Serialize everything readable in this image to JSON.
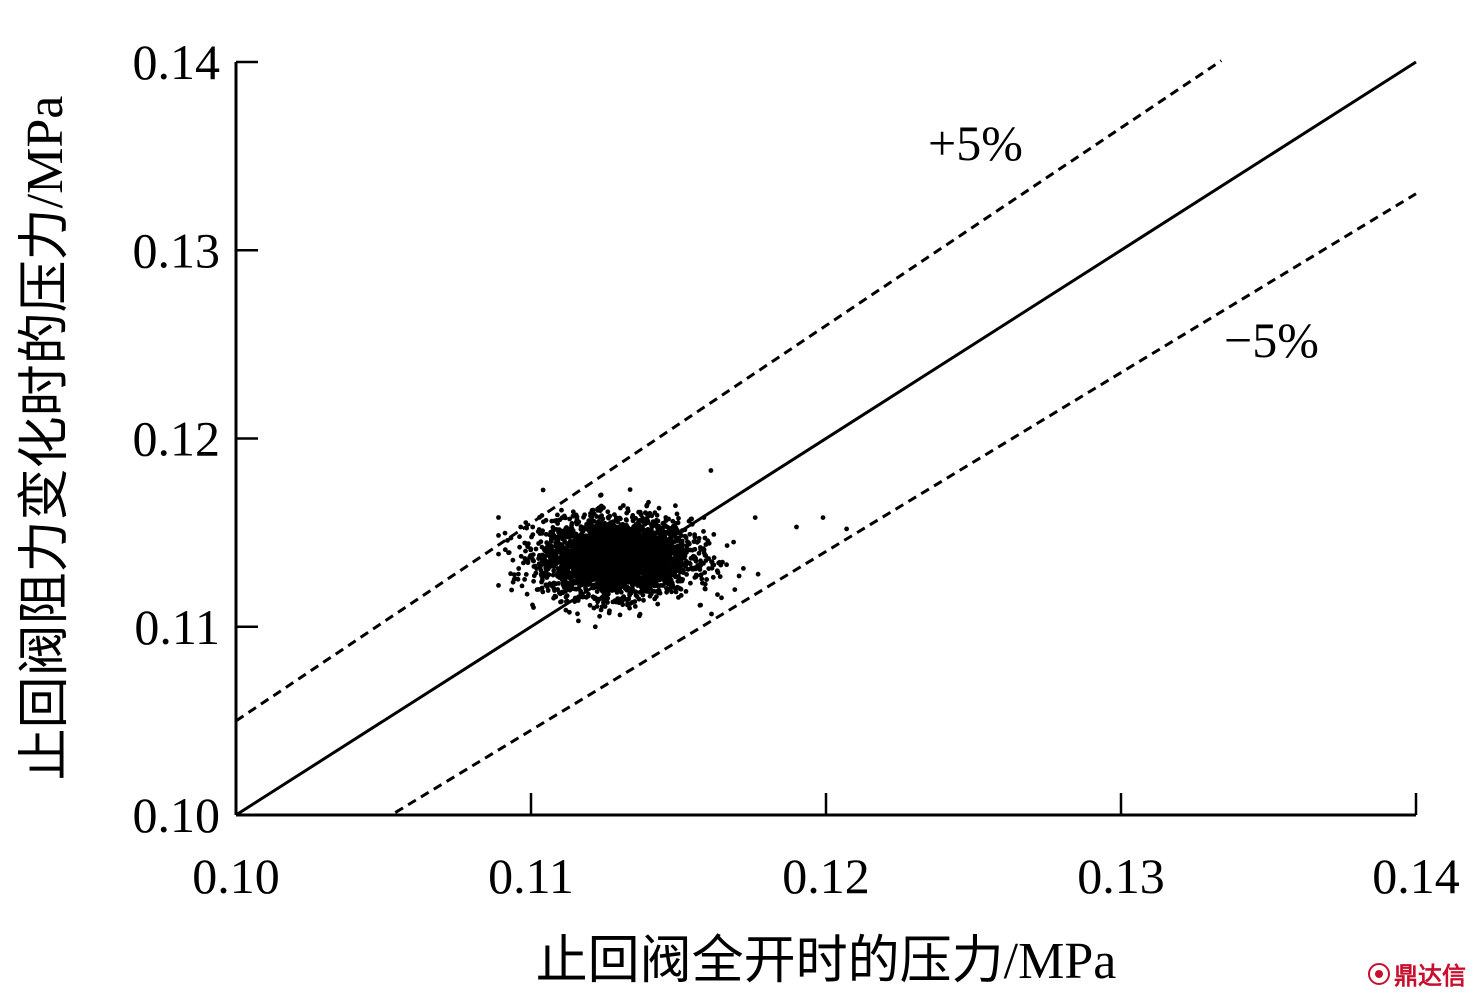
{
  "chart_data": {
    "type": "scatter",
    "title": "",
    "xlabel": "止回阀全开时的压力/MPa",
    "ylabel": "止回阀阻力变化时的压力/MPa",
    "xlim": [
      0.1,
      0.14
    ],
    "ylim": [
      0.1,
      0.14
    ],
    "x_ticks": [
      "0.10",
      "0.11",
      "0.12",
      "0.13",
      "0.14"
    ],
    "y_ticks": [
      "0.10",
      "0.11",
      "0.12",
      "0.13",
      "0.14"
    ],
    "grid": false,
    "reference_lines": [
      {
        "label": "",
        "style": "solid",
        "slope": 1.0,
        "x_range": [
          0.1,
          0.14
        ]
      },
      {
        "label": "+5%",
        "style": "dashed",
        "slope": 1.05,
        "x_range": [
          0.1,
          0.1334
        ]
      },
      {
        "label": "−5%",
        "style": "dashed",
        "slope": 0.95,
        "x_range": [
          0.1054,
          0.14
        ]
      }
    ],
    "cluster": {
      "x_center": 0.1129,
      "y_center": 0.1137,
      "x_range": [
        0.1089,
        0.1177
      ],
      "y_range": [
        0.11,
        0.118
      ]
    },
    "outliers": [
      {
        "x": 0.119,
        "y": 0.1153
      },
      {
        "x": 0.1199,
        "y": 0.1158
      },
      {
        "x": 0.1207,
        "y": 0.1152
      },
      {
        "x": 0.1161,
        "y": 0.1183
      },
      {
        "x": 0.1176,
        "y": 0.1158
      },
      {
        "x": 0.1172,
        "y": 0.1131
      }
    ]
  },
  "watermark": {
    "text": "鼎达信"
  }
}
